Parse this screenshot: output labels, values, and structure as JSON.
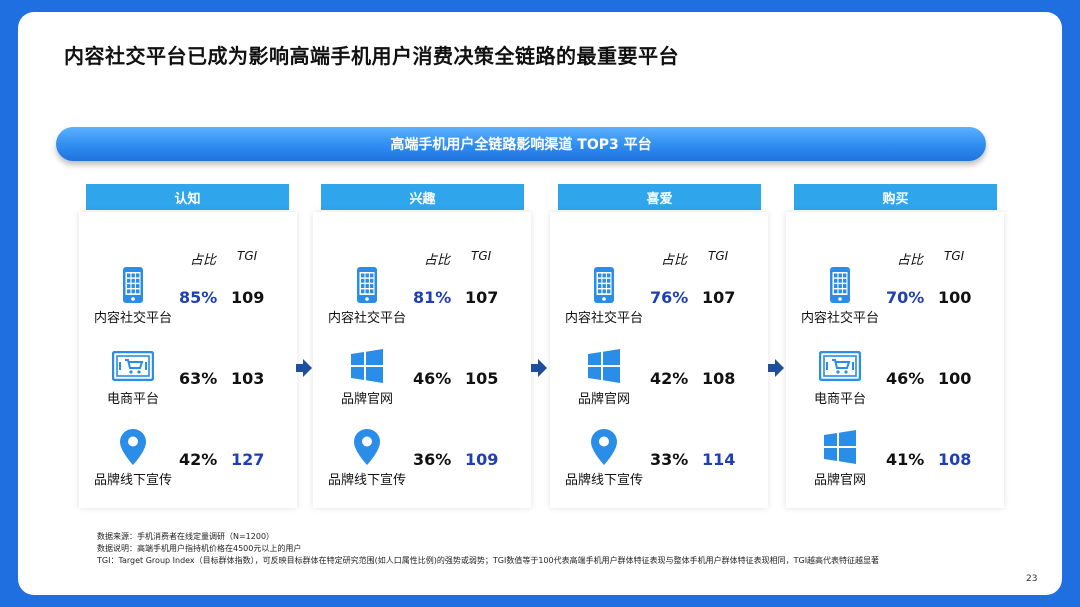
{
  "title": "内容社交平台已成为影响高端手机用户消费决策全链路的最重要平台",
  "banner": "高端手机用户全链路影响渠道 TOP3 平台",
  "column_headers": {
    "share": "占比",
    "tgi": "TGI"
  },
  "stages": [
    {
      "name": "认知",
      "rows": [
        {
          "icon": "phone-grid-icon",
          "label": "内容社交平台",
          "share": "85%",
          "tgi": "109",
          "highlight": "share"
        },
        {
          "icon": "ecommerce-cart-icon",
          "label": "电商平台",
          "share": "63%",
          "tgi": "103",
          "highlight": ""
        },
        {
          "icon": "location-pin-icon",
          "label": "品牌线下宣传",
          "share": "42%",
          "tgi": "127",
          "highlight": "tgi"
        }
      ]
    },
    {
      "name": "兴趣",
      "rows": [
        {
          "icon": "phone-grid-icon",
          "label": "内容社交平台",
          "share": "81%",
          "tgi": "107",
          "highlight": "share"
        },
        {
          "icon": "windows-icon",
          "label": "品牌官网",
          "share": "46%",
          "tgi": "105",
          "highlight": ""
        },
        {
          "icon": "location-pin-icon",
          "label": "品牌线下宣传",
          "share": "36%",
          "tgi": "109",
          "highlight": "tgi"
        }
      ]
    },
    {
      "name": "喜爱",
      "rows": [
        {
          "icon": "phone-grid-icon",
          "label": "内容社交平台",
          "share": "76%",
          "tgi": "107",
          "highlight": "share"
        },
        {
          "icon": "windows-icon",
          "label": "品牌官网",
          "share": "42%",
          "tgi": "108",
          "highlight": ""
        },
        {
          "icon": "location-pin-icon",
          "label": "品牌线下宣传",
          "share": "33%",
          "tgi": "114",
          "highlight": "tgi"
        }
      ]
    },
    {
      "name": "购买",
      "rows": [
        {
          "icon": "phone-grid-icon",
          "label": "内容社交平台",
          "share": "70%",
          "tgi": "100",
          "highlight": "share"
        },
        {
          "icon": "ecommerce-cart-icon",
          "label": "电商平台",
          "share": "46%",
          "tgi": "100",
          "highlight": ""
        },
        {
          "icon": "windows-icon",
          "label": "品牌官网",
          "share": "41%",
          "tgi": "108",
          "highlight": "tgi"
        }
      ]
    }
  ],
  "footnotes": [
    "数据来源：手机消费者在线定量调研（N=1200）",
    "数据说明：高端手机用户指持机价格在4500元以上的用户",
    "TGI：Target Group Index（目标群体指数），可反映目标群体在特定研究范围(如人口属性比例)的强势或弱势；TGI数值等于100代表高端手机用户群体特征表现与整体手机用户群体特征表现相同，TGI越高代表特征越显著"
  ],
  "page_number": "23",
  "colors": {
    "background": "#1f6fe0",
    "header_bar": "#2fa5ec",
    "icon_blue": "#2a8de8",
    "highlight_text": "#1f3fb5",
    "arrow": "#1d4f9c"
  }
}
